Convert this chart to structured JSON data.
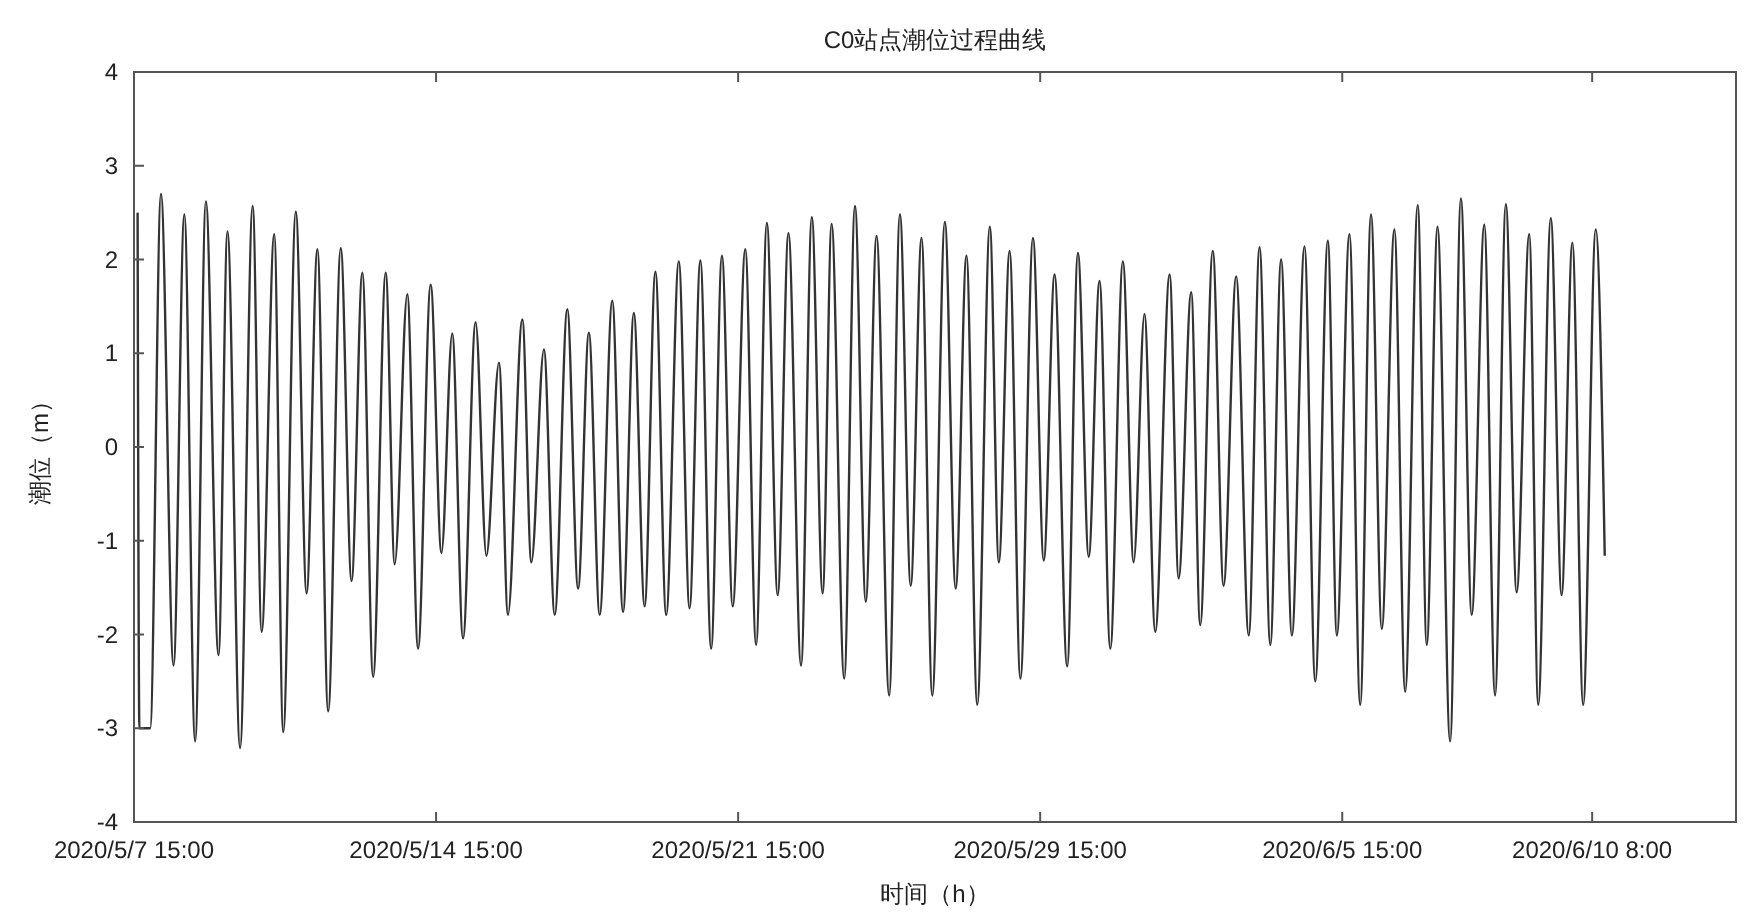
{
  "chart_data": {
    "type": "line",
    "title": "C0站点潮位过程曲线",
    "xlabel": "时间（h）",
    "ylabel": "潮位（m）",
    "xlim": [
      "2020-05-07T15:00",
      "2020-06-13T18:00"
    ],
    "ylim": [
      -4,
      4
    ],
    "xticks": [
      {
        "value": "2020-05-07T15:00",
        "label": "2020/5/7 15:00"
      },
      {
        "value": "2020-05-14T15:00",
        "label": "2020/5/14 15:00"
      },
      {
        "value": "2020-05-21T15:00",
        "label": "2020/5/21 15:00"
      },
      {
        "value": "2020-05-28T15:00",
        "label": "2020/5/29 15:00"
      },
      {
        "value": "2020-06-04T15:00",
        "label": "2020/6/5 15:00"
      },
      {
        "value": "2020-06-10T10:00",
        "label": "2020/6/10 8:00"
      }
    ],
    "yticks": [
      -4,
      -3,
      -2,
      -1,
      0,
      1,
      2,
      3,
      4
    ],
    "grid": false,
    "marker": "none",
    "line_style": "solid",
    "series": [
      {
        "color": "#333333",
        "x": [
          "2020-05-07T17:00",
          "2020-05-07T18:00",
          "2020-05-08T00:00",
          "2020-05-08T06:00",
          "2020-05-08T13:00",
          "2020-05-08T19:00",
          "2020-05-09T01:00",
          "2020-05-09T07:00",
          "2020-05-09T14:00",
          "2020-05-09T19:00",
          "2020-05-10T02:00",
          "2020-05-10T09:00",
          "2020-05-10T14:00",
          "2020-05-10T21:00",
          "2020-05-11T02:00",
          "2020-05-11T09:00",
          "2020-05-11T15:00",
          "2020-05-11T21:00",
          "2020-05-12T03:00",
          "2020-05-12T10:00",
          "2020-05-12T16:00",
          "2020-05-12T22:00",
          "2020-05-13T04:00",
          "2020-05-13T11:00",
          "2020-05-13T16:00",
          "2020-05-13T23:00",
          "2020-05-14T05:00",
          "2020-05-14T12:00",
          "2020-05-14T18:00",
          "2020-05-15T00:00",
          "2020-05-15T06:00",
          "2020-05-15T13:00",
          "2020-05-15T19:00",
          "2020-05-16T02:00",
          "2020-05-16T07:00",
          "2020-05-16T15:00",
          "2020-05-16T20:00",
          "2020-05-17T03:00",
          "2020-05-17T09:00",
          "2020-05-17T16:00",
          "2020-05-17T22:00",
          "2020-05-18T04:00",
          "2020-05-18T10:00",
          "2020-05-18T17:00",
          "2020-05-18T23:00",
          "2020-05-19T05:00",
          "2020-05-19T11:00",
          "2020-05-19T17:00",
          "2020-05-19T23:00",
          "2020-05-20T06:00",
          "2020-05-20T12:00",
          "2020-05-20T18:00",
          "2020-05-21T00:00",
          "2020-05-21T06:00",
          "2020-05-21T12:00",
          "2020-05-21T19:00",
          "2020-05-22T01:00",
          "2020-05-22T07:00",
          "2020-05-22T13:00",
          "2020-05-22T19:00",
          "2020-05-23T02:00",
          "2020-05-23T08:00",
          "2020-05-23T14:00",
          "2020-05-23T19:00",
          "2020-05-24T02:00",
          "2020-05-24T08:00",
          "2020-05-24T14:00",
          "2020-05-24T20:00",
          "2020-05-25T03:00",
          "2020-05-25T09:00",
          "2020-05-25T15:00",
          "2020-05-25T21:00",
          "2020-05-26T03:00",
          "2020-05-26T10:00",
          "2020-05-26T16:00",
          "2020-05-26T22:00",
          "2020-05-27T04:00",
          "2020-05-27T11:00",
          "2020-05-27T16:00",
          "2020-05-27T22:00",
          "2020-05-28T04:00",
          "2020-05-28T11:00",
          "2020-05-28T17:00",
          "2020-05-28T23:00",
          "2020-05-29T06:00",
          "2020-05-29T12:00",
          "2020-05-29T18:00",
          "2020-05-30T00:00",
          "2020-05-30T06:00",
          "2020-05-30T13:00",
          "2020-05-30T19:00",
          "2020-05-31T01:00",
          "2020-05-31T07:00",
          "2020-05-31T15:00",
          "2020-05-31T20:00",
          "2020-06-01T03:00",
          "2020-06-01T08:00",
          "2020-06-01T15:00",
          "2020-06-01T21:00",
          "2020-06-02T04:00",
          "2020-06-02T11:00",
          "2020-06-02T17:00",
          "2020-06-02T23:00",
          "2020-06-03T05:00",
          "2020-06-03T11:00",
          "2020-06-03T18:00",
          "2020-06-04T00:00",
          "2020-06-04T07:00",
          "2020-06-04T12:00",
          "2020-06-04T19:00",
          "2020-06-05T01:00",
          "2020-06-05T07:00",
          "2020-06-05T13:00",
          "2020-06-05T20:00",
          "2020-06-06T02:00",
          "2020-06-06T09:00",
          "2020-06-06T14:00",
          "2020-06-06T20:00",
          "2020-06-07T03:00",
          "2020-06-07T09:00",
          "2020-06-07T15:00",
          "2020-06-07T22:00",
          "2020-06-08T04:00",
          "2020-06-08T10:00",
          "2020-06-08T16:00",
          "2020-06-08T23:00",
          "2020-06-09T04:00",
          "2020-06-09T11:00",
          "2020-06-09T17:00",
          "2020-06-09T23:00",
          "2020-06-10T05:00",
          "2020-06-10T12:00",
          "2020-06-10T17:00"
        ],
        "values": [
          2.5,
          -3.0,
          -3.0,
          2.7,
          -2.33,
          2.48,
          -3.14,
          2.62,
          -2.22,
          2.3,
          -3.21,
          2.57,
          -1.97,
          2.27,
          -3.04,
          2.51,
          -1.56,
          2.11,
          -2.82,
          2.12,
          -1.43,
          1.86,
          -2.45,
          1.86,
          -1.25,
          1.63,
          -2.15,
          1.73,
          -1.13,
          1.21,
          -2.04,
          1.33,
          -1.16,
          0.9,
          -1.79,
          1.36,
          -1.23,
          1.04,
          -1.79,
          1.47,
          -1.51,
          1.22,
          -1.79,
          1.56,
          -1.76,
          1.43,
          -1.7,
          1.87,
          -1.79,
          1.98,
          -1.72,
          1.99,
          -2.15,
          2.04,
          -1.7,
          2.11,
          -2.11,
          2.39,
          -1.58,
          2.28,
          -2.33,
          2.45,
          -1.56,
          2.38,
          -2.47,
          2.57,
          -1.65,
          2.25,
          -2.65,
          2.48,
          -1.48,
          2.23,
          -2.65,
          2.4,
          -1.51,
          2.04,
          -2.75,
          2.35,
          -1.23,
          2.09,
          -2.47,
          2.23,
          -1.21,
          1.84,
          -2.34,
          2.07,
          -1.17,
          1.77,
          -2.15,
          1.98,
          -1.23,
          1.42,
          -1.97,
          1.84,
          -1.4,
          1.65,
          -1.9,
          2.09,
          -1.48,
          1.82,
          -2.01,
          2.13,
          -2.11,
          2.0,
          -2.01,
          2.14,
          -2.5,
          2.2,
          -2.01,
          2.27,
          -2.75,
          2.48,
          -1.94,
          2.32,
          -2.61,
          2.58,
          -2.11,
          2.35,
          -3.14,
          2.65,
          -1.79,
          2.37,
          -2.65,
          2.59,
          -1.55,
          2.27,
          -2.75,
          2.44,
          -1.58,
          2.18,
          -2.75,
          2.32,
          -1.16
        ]
      }
    ]
  }
}
